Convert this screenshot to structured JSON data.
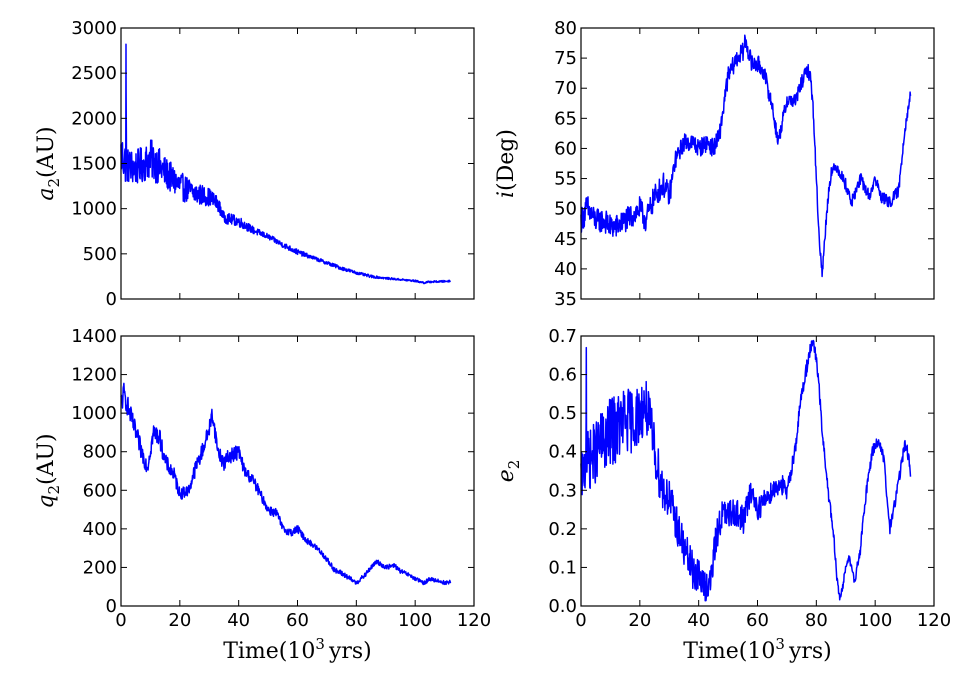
{
  "colors": {
    "series": "#0000ff",
    "axis": "#000000",
    "background": "#ffffff"
  },
  "chart_data": [
    {
      "id": "a2",
      "type": "line",
      "title": "",
      "xlabel": "",
      "ylabel_main": "a",
      "ylabel_sub": "2",
      "ylabel_unit": "(AU)",
      "xlim": [
        0,
        120
      ],
      "ylim": [
        0,
        3000
      ],
      "xticks": [
        0,
        20,
        40,
        60,
        80,
        100,
        120
      ],
      "yticks": [
        0,
        500,
        1000,
        1500,
        2000,
        2500,
        3000
      ],
      "xtick_labels": [],
      "ytick_labels": [
        "0",
        "500",
        "1000",
        "1500",
        "2000",
        "2500",
        "3000"
      ],
      "grid": false,
      "noise": 0.3,
      "series": [
        {
          "name": "a2",
          "x": [
            0,
            1,
            1.6,
            1.7,
            1.8,
            2,
            5,
            8,
            10,
            12,
            15,
            20,
            25,
            30,
            33,
            35,
            40,
            45,
            50,
            55,
            60,
            65,
            70,
            75,
            80,
            85,
            90,
            95,
            100,
            103,
            105,
            110,
            112
          ],
          "y": [
            1600,
            1550,
            1500,
            2820,
            1500,
            1480,
            1450,
            1500,
            1550,
            1500,
            1400,
            1250,
            1170,
            1130,
            1050,
            900,
            860,
            760,
            690,
            600,
            520,
            460,
            400,
            340,
            290,
            250,
            230,
            215,
            200,
            180,
            190,
            195,
            200
          ],
          "spread": [
            260,
            250,
            230,
            0,
            230,
            200,
            200,
            200,
            220,
            220,
            180,
            160,
            130,
            100,
            80,
            60,
            60,
            40,
            30,
            30,
            30,
            20,
            20,
            20,
            15,
            15,
            10,
            10,
            10,
            10,
            10,
            10,
            10
          ]
        }
      ]
    },
    {
      "id": "inclination",
      "type": "line",
      "title": "",
      "xlabel": "",
      "ylabel_main": "i",
      "ylabel_sub": "",
      "ylabel_unit": "(Deg)",
      "xlim": [
        0,
        120
      ],
      "ylim": [
        35,
        80
      ],
      "xticks": [
        0,
        20,
        40,
        60,
        80,
        100,
        120
      ],
      "yticks": [
        35,
        40,
        45,
        50,
        55,
        60,
        65,
        70,
        75,
        80
      ],
      "xtick_labels": [],
      "ytick_labels": [
        "35",
        "40",
        "45",
        "50",
        "55",
        "60",
        "65",
        "70",
        "75",
        "80"
      ],
      "grid": false,
      "noise": 0.3,
      "series": [
        {
          "name": "i",
          "x": [
            0,
            2,
            5,
            8,
            10,
            12,
            15,
            18,
            20,
            22,
            25,
            28,
            30,
            32,
            35,
            38,
            40,
            43,
            45,
            47,
            50,
            53,
            55,
            56,
            58,
            60,
            62,
            65,
            67,
            70,
            73,
            75,
            77,
            78,
            79,
            80,
            81,
            82,
            83,
            84,
            85,
            87,
            90,
            92,
            95,
            98,
            100,
            102,
            105,
            108,
            110,
            112
          ],
          "y": [
            48,
            50,
            48,
            48,
            47,
            47,
            48,
            49,
            50,
            48,
            52,
            54,
            52,
            58,
            61,
            61,
            60,
            61,
            60,
            62,
            72,
            75,
            76,
            78,
            74,
            74,
            73,
            67,
            61,
            68,
            68,
            71,
            73,
            72,
            66,
            55,
            45,
            39,
            46,
            52,
            56,
            57,
            54,
            51,
            55,
            52,
            55,
            52,
            51,
            53,
            63,
            69
          ],
          "spread": [
            2,
            2.5,
            2,
            2,
            2,
            2,
            2,
            2,
            2,
            2,
            2,
            2,
            2,
            1.5,
            1.5,
            1.5,
            1.5,
            1.5,
            1.5,
            1.5,
            1.5,
            1.5,
            1.5,
            1.5,
            1.5,
            1.5,
            1.5,
            1.2,
            1.2,
            1.2,
            1.2,
            1.2,
            1.2,
            1.2,
            1,
            1,
            1,
            0.8,
            1,
            1,
            1,
            1,
            1,
            1,
            1,
            1,
            1,
            1,
            1,
            1,
            1,
            0.8
          ]
        }
      ]
    },
    {
      "id": "q2",
      "type": "line",
      "title": "",
      "xlabel_main": "Time",
      "xlabel_unit": "(10",
      "xlabel_sup": "3",
      "xlabel_end": "yrs)",
      "ylabel_main": "q",
      "ylabel_sub": "2",
      "ylabel_unit": "(AU)",
      "xlim": [
        0,
        120
      ],
      "ylim": [
        0,
        1400
      ],
      "xticks": [
        0,
        20,
        40,
        60,
        80,
        100,
        120
      ],
      "yticks": [
        0,
        200,
        400,
        600,
        800,
        1000,
        1200,
        1400
      ],
      "xtick_labels": [
        "0",
        "20",
        "40",
        "60",
        "80",
        "100",
        "120"
      ],
      "ytick_labels": [
        "0",
        "200",
        "400",
        "600",
        "800",
        "1000",
        "1200",
        "1400"
      ],
      "grid": false,
      "noise": 0.3,
      "series": [
        {
          "name": "q2",
          "x": [
            0,
            1,
            3,
            5,
            7,
            9,
            11,
            13,
            15,
            18,
            20,
            23,
            25,
            28,
            30,
            31,
            33,
            35,
            37,
            40,
            42,
            45,
            48,
            50,
            53,
            55,
            58,
            60,
            63,
            65,
            68,
            70,
            73,
            75,
            78,
            80,
            83,
            85,
            87,
            90,
            93,
            95,
            98,
            100,
            103,
            105,
            108,
            110,
            112
          ],
          "y": [
            1050,
            1100,
            1000,
            900,
            800,
            720,
            900,
            880,
            750,
            680,
            580,
            600,
            700,
            820,
            920,
            1000,
            800,
            740,
            780,
            800,
            700,
            650,
            560,
            500,
            480,
            400,
            380,
            400,
            340,
            320,
            280,
            240,
            180,
            170,
            140,
            120,
            160,
            200,
            230,
            200,
            210,
            180,
            160,
            140,
            120,
            140,
            130,
            120,
            125
          ],
          "spread": [
            60,
            60,
            50,
            50,
            50,
            40,
            50,
            50,
            40,
            40,
            30,
            30,
            40,
            40,
            40,
            40,
            40,
            40,
            40,
            40,
            30,
            30,
            25,
            25,
            25,
            20,
            20,
            20,
            15,
            15,
            15,
            15,
            15,
            15,
            12,
            12,
            12,
            12,
            12,
            12,
            12,
            12,
            10,
            10,
            10,
            10,
            10,
            10,
            10
          ]
        }
      ]
    },
    {
      "id": "e2",
      "type": "line",
      "title": "",
      "xlabel_main": "Time",
      "xlabel_unit": "(10",
      "xlabel_sup": "3",
      "xlabel_end": "yrs)",
      "ylabel_main": "e",
      "ylabel_sub": "2",
      "ylabel_unit": "",
      "xlim": [
        0,
        120
      ],
      "ylim": [
        0.0,
        0.7
      ],
      "xticks": [
        0,
        20,
        40,
        60,
        80,
        100,
        120
      ],
      "yticks": [
        0.0,
        0.1,
        0.2,
        0.3,
        0.4,
        0.5,
        0.6,
        0.7
      ],
      "xtick_labels": [
        "0",
        "20",
        "40",
        "60",
        "80",
        "100",
        "120"
      ],
      "ytick_labels": [
        "0.0",
        "0.1",
        "0.2",
        "0.3",
        "0.4",
        "0.5",
        "0.6",
        "0.7"
      ],
      "grid": false,
      "noise": 0.3,
      "series": [
        {
          "name": "e2",
          "x": [
            0,
            1,
            1.7,
            1.8,
            1.9,
            3,
            5,
            8,
            10,
            12,
            15,
            18,
            20,
            22,
            24,
            26,
            28,
            30,
            33,
            35,
            38,
            40,
            42,
            44,
            46,
            48,
            50,
            52,
            55,
            58,
            60,
            62,
            65,
            68,
            70,
            73,
            75,
            77,
            78,
            79,
            80,
            81,
            82,
            84,
            86,
            87,
            88,
            89,
            90,
            91,
            92,
            93,
            95,
            97,
            99,
            101,
            103,
            104,
            105,
            107,
            109,
            110,
            111,
            112
          ],
          "y": [
            0.33,
            0.35,
            0.38,
            0.67,
            0.38,
            0.38,
            0.4,
            0.43,
            0.45,
            0.46,
            0.48,
            0.48,
            0.5,
            0.52,
            0.45,
            0.36,
            0.3,
            0.28,
            0.2,
            0.15,
            0.09,
            0.08,
            0.05,
            0.06,
            0.18,
            0.24,
            0.23,
            0.25,
            0.22,
            0.3,
            0.25,
            0.27,
            0.3,
            0.32,
            0.29,
            0.42,
            0.55,
            0.63,
            0.67,
            0.68,
            0.64,
            0.56,
            0.45,
            0.3,
            0.17,
            0.07,
            0.02,
            0.05,
            0.1,
            0.13,
            0.1,
            0.06,
            0.15,
            0.3,
            0.4,
            0.43,
            0.38,
            0.28,
            0.2,
            0.28,
            0.37,
            0.42,
            0.4,
            0.35
          ],
          "spread": [
            0.06,
            0.07,
            0.07,
            0,
            0.07,
            0.08,
            0.08,
            0.09,
            0.09,
            0.09,
            0.09,
            0.08,
            0.08,
            0.07,
            0.07,
            0.06,
            0.06,
            0.05,
            0.05,
            0.05,
            0.05,
            0.04,
            0.04,
            0.04,
            0.04,
            0.04,
            0.04,
            0.04,
            0.04,
            0.03,
            0.03,
            0.03,
            0.03,
            0.03,
            0.02,
            0.02,
            0.02,
            0.02,
            0.015,
            0.015,
            0.015,
            0.015,
            0.015,
            0.015,
            0.015,
            0.01,
            0.01,
            0.01,
            0.01,
            0.01,
            0.01,
            0.01,
            0.015,
            0.015,
            0.015,
            0.015,
            0.015,
            0.015,
            0.015,
            0.015,
            0.015,
            0.015,
            0.015,
            0.015
          ]
        }
      ]
    }
  ]
}
